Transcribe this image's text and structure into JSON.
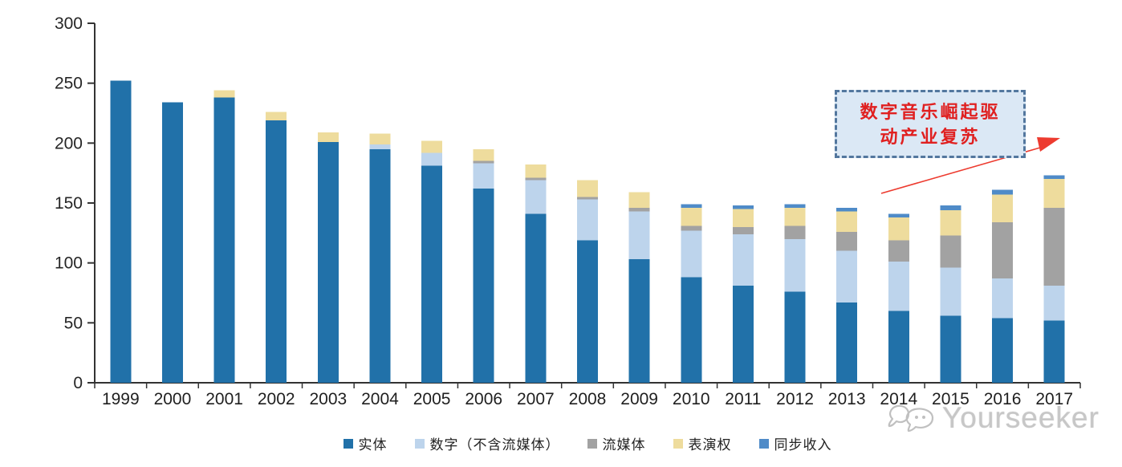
{
  "chart_data": {
    "type": "bar",
    "stacked": true,
    "title": "",
    "xlabel": "",
    "ylabel": "",
    "ylim": [
      0,
      300
    ],
    "yticks": [
      0,
      50,
      100,
      150,
      200,
      250,
      300
    ],
    "grid": false,
    "legend_position": "bottom",
    "categories": [
      "1999",
      "2000",
      "2001",
      "2002",
      "2003",
      "2004",
      "2005",
      "2006",
      "2007",
      "2008",
      "2009",
      "2010",
      "2011",
      "2012",
      "2013",
      "2014",
      "2015",
      "2016",
      "2017"
    ],
    "series": [
      {
        "name": "实体",
        "color": "#2171a9",
        "values": [
          252,
          234,
          238,
          219,
          201,
          195,
          181,
          162,
          141,
          119,
          103,
          88,
          81,
          76,
          67,
          60,
          56,
          54,
          52
        ]
      },
      {
        "name": "数字（不含流媒体）",
        "color": "#bdd4ec",
        "values": [
          0,
          0,
          0,
          0,
          0,
          4,
          11,
          21,
          28,
          34,
          40,
          39,
          43,
          44,
          43,
          41,
          40,
          33,
          29
        ]
      },
      {
        "name": "流媒体",
        "color": "#a2a2a2",
        "values": [
          0,
          0,
          0,
          0,
          0,
          0,
          0,
          2,
          2,
          2,
          3,
          4,
          6,
          11,
          16,
          18,
          27,
          47,
          65
        ]
      },
      {
        "name": "表演权",
        "color": "#eedc9d",
        "values": [
          0,
          0,
          6,
          7,
          8,
          9,
          10,
          10,
          11,
          14,
          13,
          15,
          15,
          15,
          17,
          19,
          21,
          23,
          24
        ]
      },
      {
        "name": "同步收入",
        "color": "#4f8bc8",
        "values": [
          0,
          0,
          0,
          0,
          0,
          0,
          0,
          0,
          0,
          0,
          0,
          3,
          3,
          3,
          3,
          3,
          4,
          4,
          3
        ]
      }
    ]
  },
  "annotation": {
    "line1": "数字音乐崛起驱",
    "line2": "动产业复苏",
    "text_color": "#e02020",
    "box_fill": "#dbe8f5",
    "box_border": "#53779e",
    "arrow_color": "#ed3b2f"
  },
  "axis_style": {
    "line_color": "#333333",
    "tick_label_color": "#262626"
  },
  "watermark": {
    "text": "Yourseeker",
    "color": "#c7c7c7"
  }
}
